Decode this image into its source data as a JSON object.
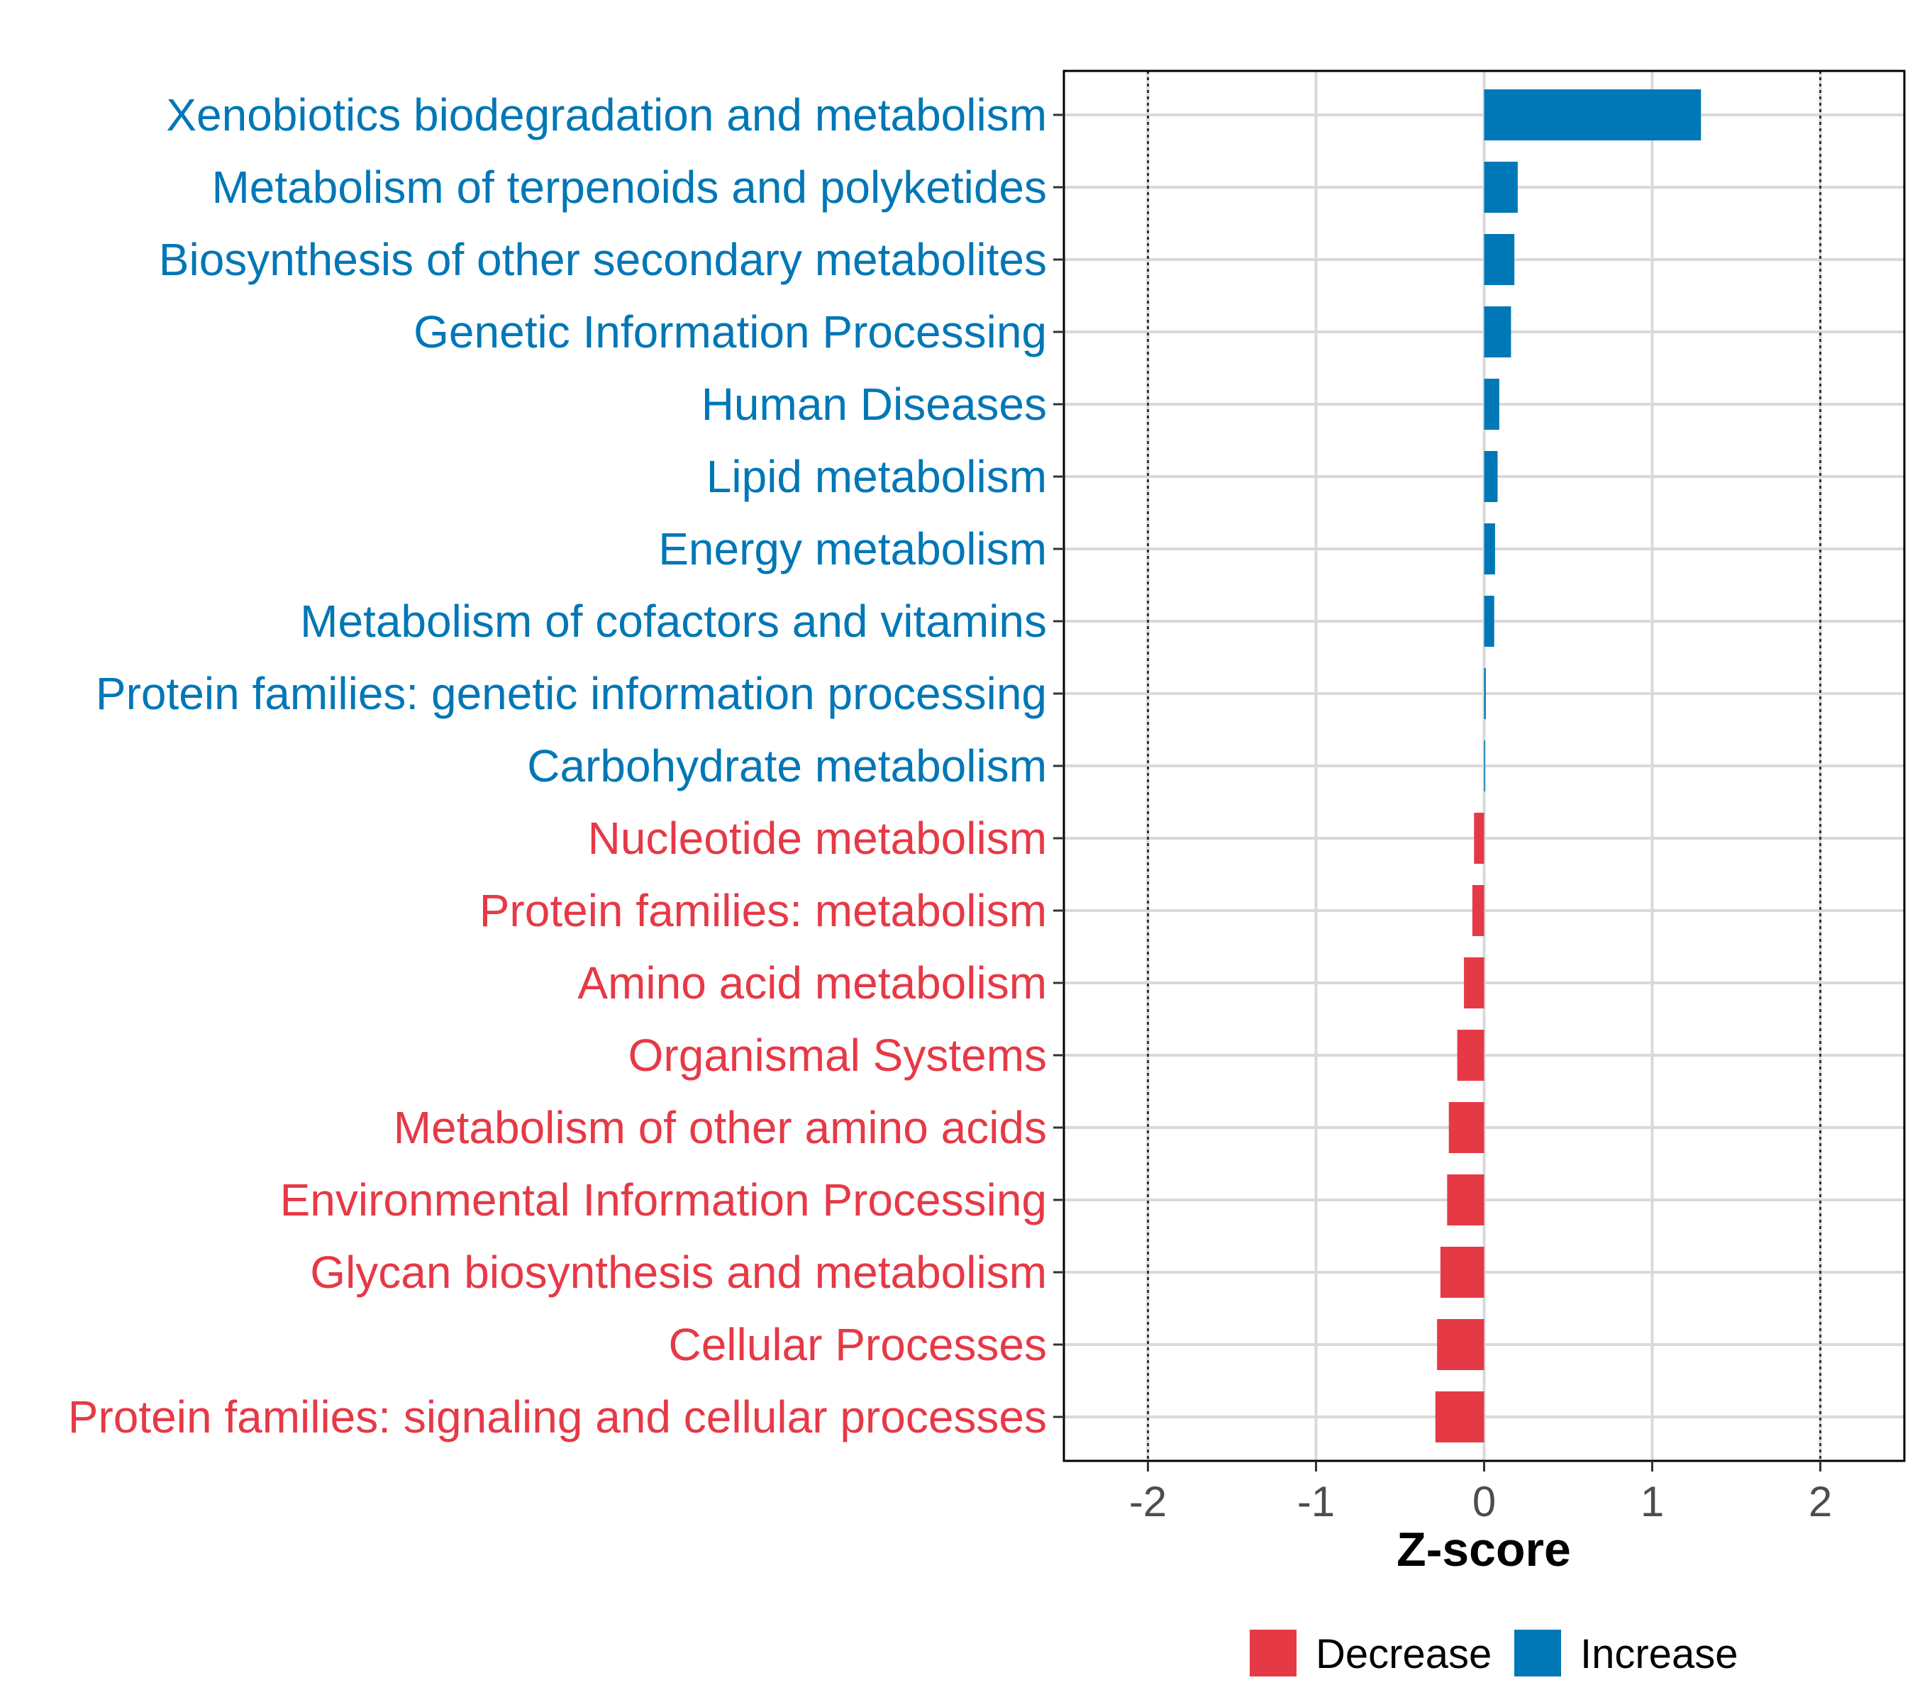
{
  "colors": {
    "decrease": "#E63946",
    "increase": "#0077B6",
    "grid": "#D9D9D9",
    "panel_border": "#000000",
    "tick_text": "#4D4D4D"
  },
  "chart_data": {
    "type": "bar",
    "orientation": "horizontal",
    "title": "",
    "xlabel": "Z-score",
    "ylabel": "",
    "xlim": [
      -2.5,
      2.5
    ],
    "xticks": [
      -2,
      -1,
      0,
      1,
      2
    ],
    "xtick_labels": [
      "-2",
      "-1",
      "0",
      "1",
      "2"
    ],
    "reference_lines": [
      -2,
      2
    ],
    "grid": true,
    "legend_position": "bottom",
    "categories": [
      "Xenobiotics biodegradation and metabolism",
      "Metabolism of terpenoids and polyketides",
      "Biosynthesis of other secondary metabolites",
      "Genetic Information Processing",
      "Human Diseases",
      "Lipid metabolism",
      "Energy metabolism",
      "Metabolism of cofactors and vitamins",
      "Protein families: genetic information processing",
      "Carbohydrate metabolism",
      "Nucleotide metabolism",
      "Protein families: metabolism",
      "Amino acid metabolism",
      "Organismal Systems",
      "Metabolism of other amino acids",
      "Environmental Information Processing",
      "Glycan biosynthesis and metabolism",
      "Cellular Processes",
      "Protein families: signaling and cellular processes"
    ],
    "values": [
      1.29,
      0.2,
      0.18,
      0.16,
      0.09,
      0.08,
      0.065,
      0.06,
      0.01,
      0.003,
      -0.06,
      -0.07,
      -0.12,
      -0.16,
      -0.21,
      -0.22,
      -0.26,
      -0.28,
      -0.29
    ],
    "groups": [
      "Increase",
      "Increase",
      "Increase",
      "Increase",
      "Increase",
      "Increase",
      "Increase",
      "Increase",
      "Increase",
      "Increase",
      "Decrease",
      "Decrease",
      "Decrease",
      "Decrease",
      "Decrease",
      "Decrease",
      "Decrease",
      "Decrease",
      "Decrease"
    ],
    "legend": [
      {
        "key": "decrease",
        "label": "Decrease"
      },
      {
        "key": "increase",
        "label": "Increase"
      }
    ]
  }
}
